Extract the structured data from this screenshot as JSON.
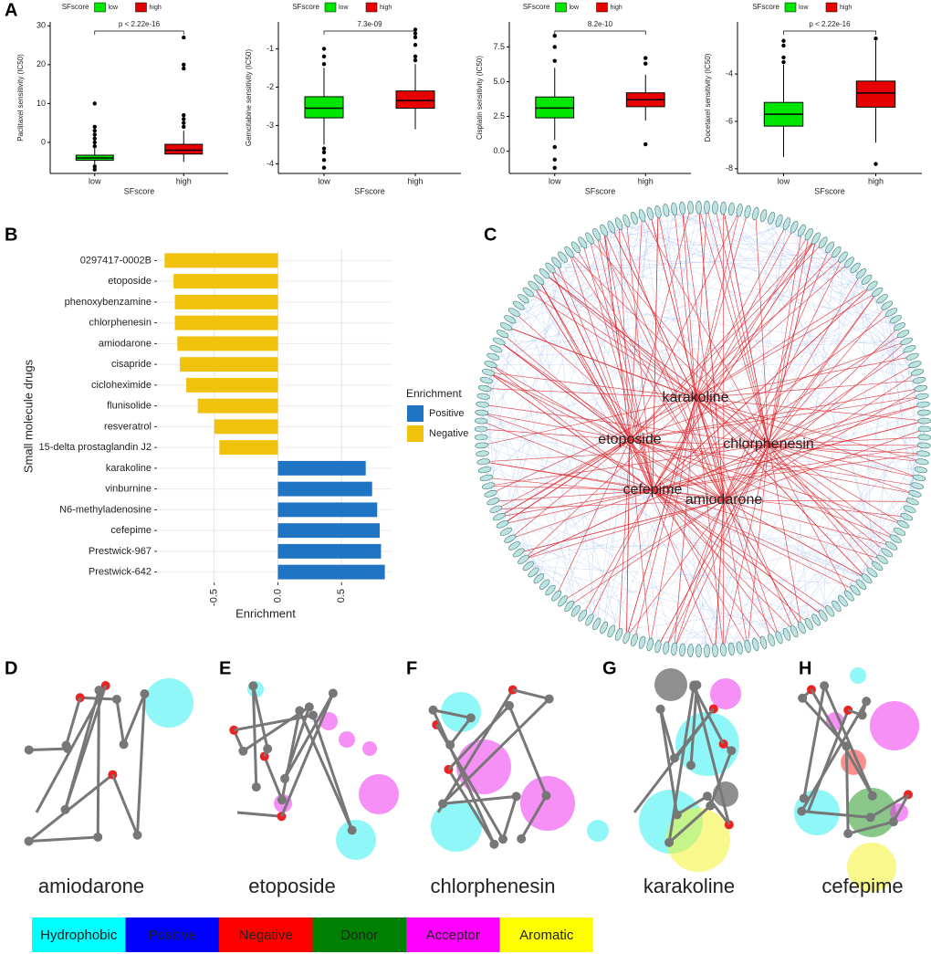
{
  "panel_labels": [
    "A",
    "B",
    "C",
    "D",
    "E",
    "F",
    "G",
    "H"
  ],
  "chart_data": [
    {
      "type": "box",
      "y_label": "Paclitaxel sensitivity (IC50)",
      "x_label": "SFscore",
      "legend_title": "SFscore",
      "annotation": "p < 2.22e-16",
      "categories": [
        "low",
        "high"
      ],
      "ylim": [
        -8,
        31
      ],
      "yticks": [
        0,
        10,
        20,
        30
      ],
      "series": [
        {
          "name": "low",
          "color": "#00e600",
          "min": -6.5,
          "q1": -4.6,
          "median": -4,
          "q3": -3.3,
          "max": -1.5,
          "outliers": [
            -7,
            -6.2,
            -1,
            0,
            1,
            2,
            3,
            4,
            10
          ]
        },
        {
          "name": "high",
          "color": "#e60000",
          "min": -5,
          "q1": -3,
          "median": -2,
          "q3": -0.5,
          "max": 3,
          "outliers": [
            4,
            5,
            6,
            7,
            19,
            20,
            27
          ]
        }
      ]
    },
    {
      "type": "box",
      "y_label": "Gemcitabine sensitivity (IC50)",
      "x_label": "SFscore",
      "legend_title": "SFscore",
      "annotation": "7.3e-09",
      "categories": [
        "low",
        "high"
      ],
      "ylim": [
        -4.25,
        -0.3
      ],
      "yticks": [
        -4,
        -3,
        -2,
        -1
      ],
      "series": [
        {
          "name": "low",
          "color": "#00e600",
          "min": -3.5,
          "q1": -2.8,
          "median": -2.55,
          "q3": -2.25,
          "max": -1.5,
          "outliers": [
            -4.1,
            -3.9,
            -3.7,
            -3.6,
            -1.4,
            -1.2,
            -1
          ]
        },
        {
          "name": "high",
          "color": "#e60000",
          "min": -3.1,
          "q1": -2.55,
          "median": -2.35,
          "q3": -2.1,
          "max": -1.4,
          "outliers": [
            -1.3,
            -1.2,
            -0.9,
            -0.7,
            -0.6,
            -0.5
          ]
        }
      ]
    },
    {
      "type": "box",
      "y_label": "Cisplatin sensitivity (IC50)",
      "x_label": "SFscore",
      "legend_title": "SFscore",
      "annotation": "8.2e-10",
      "categories": [
        "low",
        "high"
      ],
      "ylim": [
        -1.6,
        9.3
      ],
      "yticks": [
        {
          "value": 0,
          "label": "0.0"
        },
        2.5,
        {
          "value": 5,
          "label": "5.0"
        },
        7.5
      ],
      "series": [
        {
          "name": "low",
          "color": "#00e600",
          "min": 0.8,
          "q1": 2.4,
          "median": 3.1,
          "q3": 3.9,
          "max": 6,
          "outliers": [
            8.3,
            7.5,
            6.5,
            0.3,
            -0.6,
            -1.2
          ]
        },
        {
          "name": "high",
          "color": "#e60000",
          "min": 2.2,
          "q1": 3.2,
          "median": 3.7,
          "q3": 4.2,
          "max": 5.5,
          "outliers": [
            6.3,
            6.7,
            0.5
          ]
        }
      ]
    },
    {
      "type": "box",
      "y_label": "Docetaxel sensitivity (IC50)",
      "x_label": "SFscore",
      "legend_title": "SFscore",
      "annotation": "p < 2.22e-16",
      "categories": [
        "low",
        "high"
      ],
      "ylim": [
        -8.2,
        -1.8
      ],
      "yticks": [
        -8,
        -6,
        -4
      ],
      "series": [
        {
          "name": "low",
          "color": "#00e600",
          "min": -7.5,
          "q1": -6.2,
          "median": -5.7,
          "q3": -5.2,
          "max": -3.6,
          "outliers": [
            -2.6,
            -2.8,
            -3.3,
            -3.5
          ]
        },
        {
          "name": "high",
          "color": "#e60000",
          "min": -6.9,
          "q1": -5.4,
          "median": -4.8,
          "q3": -4.3,
          "max": -2.6,
          "outliers": [
            -2.5,
            -7.8
          ]
        }
      ]
    },
    {
      "type": "hbar",
      "y_label": "Small molecule drugs",
      "x_label": "Enrichment",
      "legend_title": "Enrichment",
      "categories": [
        "0297417-0002B",
        "etoposide",
        "phenoxybenzamine",
        "chlorphenesin",
        "amiodarone",
        "cisapride",
        "cicloheximide",
        "flunisolide",
        "resveratrol",
        "15-delta prostaglandin J2",
        "karakoline",
        "vinburnine",
        "N6-methyladenosine",
        "cefepime",
        "Prestwick-967",
        "Prestwick-642"
      ],
      "xlim": [
        -0.95,
        0.9
      ],
      "xticks": [
        -0.5,
        {
          "value": 0,
          "label": "0.0"
        },
        0.5
      ],
      "grid": true,
      "series": [
        {
          "name": "Positive",
          "color": "#1f74c4",
          "values": [
            null,
            null,
            null,
            null,
            null,
            null,
            null,
            null,
            null,
            null,
            0.69,
            0.74,
            0.78,
            0.8,
            0.81,
            0.84
          ]
        },
        {
          "name": "Negative",
          "color": "#f0c20c",
          "values": [
            -0.89,
            -0.82,
            -0.81,
            -0.81,
            -0.79,
            -0.77,
            -0.72,
            -0.63,
            -0.5,
            -0.46,
            null,
            null,
            null,
            null,
            null,
            null
          ]
        }
      ]
    }
  ],
  "network": {
    "hubs": [
      "karakoline",
      "etoposide",
      "chlorphenesin",
      "cefepime",
      "amiodarone"
    ]
  },
  "molecules": [
    "amiodarone",
    "etoposide",
    "chlorphenesin",
    "karakoline",
    "cefepime"
  ],
  "pharmacophore_legend": [
    {
      "label": "Hydrophobic",
      "color": "#00ffff"
    },
    {
      "label": "Positive",
      "color": "#0000ff"
    },
    {
      "label": "Negative",
      "color": "#ff0000"
    },
    {
      "label": "Donor",
      "color": "#008000"
    },
    {
      "label": "Acceptor",
      "color": "#ff00ff"
    },
    {
      "label": "Aromatic",
      "color": "#ffff00"
    }
  ]
}
